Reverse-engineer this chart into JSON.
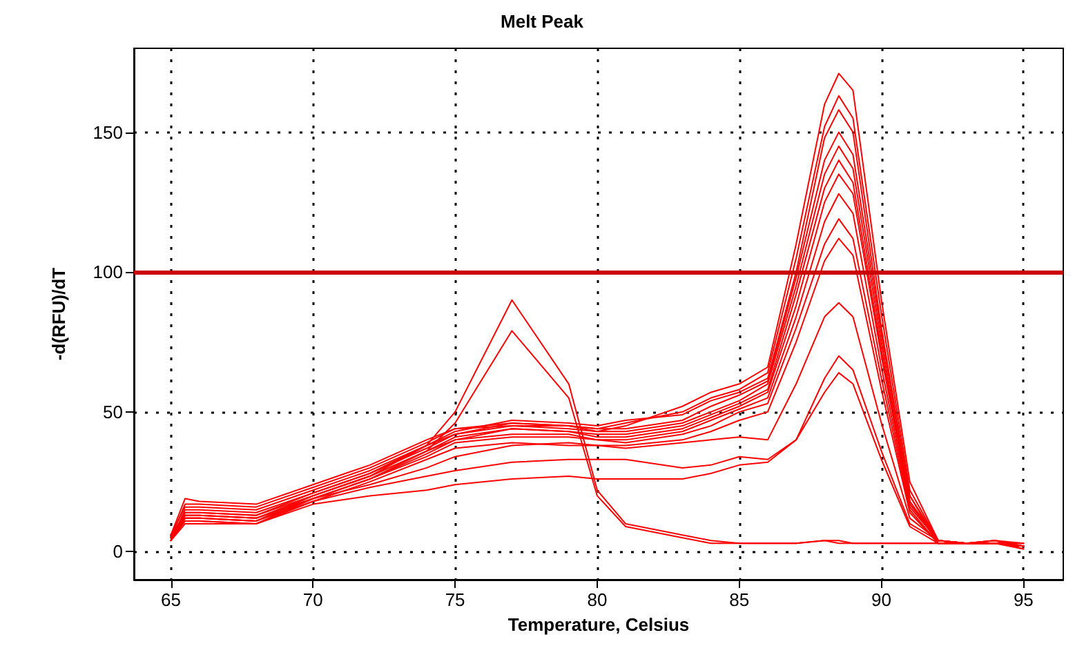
{
  "chart_data": {
    "type": "line",
    "title": "Melt Peak",
    "xlabel": "Temperature, Celsius",
    "ylabel": "-d(RFU)/dT",
    "x": [
      65,
      65.5,
      66,
      68,
      70,
      72,
      74,
      75,
      77,
      79,
      80,
      81,
      83,
      84,
      85,
      86,
      87,
      88,
      88.5,
      89,
      90,
      91,
      92,
      93,
      94,
      95
    ],
    "series": [
      {
        "color": "#ff0000",
        "values": [
          6,
          19,
          18,
          17,
          24,
          31,
          40,
          44,
          45,
          44,
          43,
          45,
          52,
          57,
          60,
          66,
          110,
          160,
          171,
          165,
          90,
          25,
          4,
          3,
          4,
          3
        ]
      },
      {
        "color": "#ff0000",
        "values": [
          5,
          17,
          17,
          16,
          23,
          30,
          39,
          44,
          46,
          45,
          44,
          46,
          50,
          55,
          58,
          64,
          105,
          152,
          163,
          155,
          85,
          22,
          4,
          3,
          3,
          2
        ]
      },
      {
        "color": "#ff0000",
        "values": [
          6,
          16,
          16,
          15,
          22,
          29,
          38,
          43,
          47,
          46,
          45,
          47,
          49,
          54,
          57,
          62,
          100,
          148,
          158,
          150,
          80,
          20,
          4,
          3,
          4,
          1
        ]
      },
      {
        "color": "#ff0000",
        "values": [
          4,
          15,
          15,
          14,
          21,
          28,
          38,
          42,
          46,
          45,
          44,
          44,
          47,
          52,
          56,
          61,
          98,
          140,
          150,
          142,
          78,
          20,
          3,
          3,
          3,
          2
        ]
      },
      {
        "color": "#ff0000",
        "values": [
          5,
          14,
          14,
          13,
          21,
          28,
          37,
          42,
          45,
          45,
          43,
          43,
          46,
          50,
          54,
          60,
          95,
          135,
          145,
          137,
          75,
          18,
          4,
          3,
          3,
          3
        ]
      },
      {
        "color": "#ff0000",
        "values": [
          5,
          13,
          13,
          12,
          20,
          27,
          36,
          41,
          44,
          43,
          42,
          42,
          45,
          49,
          53,
          58,
          92,
          130,
          140,
          132,
          72,
          18,
          3,
          3,
          4,
          2
        ]
      },
      {
        "color": "#ff0000",
        "values": [
          4,
          12,
          12,
          11,
          20,
          27,
          36,
          40,
          44,
          43,
          41,
          41,
          44,
          48,
          52,
          57,
          88,
          125,
          135,
          128,
          70,
          17,
          4,
          3,
          3,
          1
        ]
      },
      {
        "color": "#ff0000",
        "values": [
          5,
          12,
          12,
          11,
          19,
          26,
          35,
          40,
          42,
          42,
          40,
          40,
          43,
          47,
          51,
          55,
          84,
          118,
          128,
          121,
          66,
          16,
          4,
          3,
          3,
          2
        ]
      },
      {
        "color": "#ff0000",
        "values": [
          4,
          11,
          11,
          10,
          19,
          26,
          34,
          39,
          41,
          41,
          40,
          39,
          42,
          45,
          50,
          53,
          80,
          110,
          119,
          112,
          62,
          15,
          3,
          3,
          3,
          3
        ]
      },
      {
        "color": "#ff0000",
        "values": [
          5,
          11,
          11,
          10,
          18,
          25,
          33,
          37,
          39,
          38,
          38,
          38,
          40,
          43,
          47,
          50,
          75,
          104,
          112,
          106,
          58,
          14,
          3,
          3,
          4,
          2
        ]
      },
      {
        "color": "#ff0000",
        "values": [
          4,
          13,
          13,
          12,
          19,
          24,
          30,
          34,
          38,
          39,
          38,
          37,
          39,
          40,
          41,
          40,
          60,
          84,
          89,
          84,
          46,
          12,
          4,
          3,
          3,
          2
        ]
      },
      {
        "color": "#ff0000",
        "values": [
          5,
          12,
          12,
          11,
          18,
          23,
          27,
          29,
          32,
          33,
          33,
          33,
          30,
          31,
          34,
          33,
          40,
          62,
          70,
          65,
          36,
          10,
          4,
          3,
          3,
          2
        ]
      },
      {
        "color": "#ff0000",
        "values": [
          4,
          10,
          10,
          10,
          17,
          20,
          22,
          24,
          26,
          27,
          26,
          26,
          26,
          28,
          31,
          32,
          40,
          57,
          64,
          60,
          33,
          9,
          3,
          3,
          3,
          2
        ]
      },
      {
        "color": "#ff0000",
        "values": [
          5,
          14,
          14,
          13,
          20,
          27,
          38,
          50,
          90,
          60,
          22,
          10,
          6,
          4,
          3,
          3,
          3,
          4,
          4,
          3,
          3,
          3,
          3,
          3,
          3,
          2
        ]
      },
      {
        "color": "#ff0000",
        "values": [
          6,
          13,
          13,
          12,
          19,
          26,
          36,
          46,
          79,
          55,
          20,
          9,
          5,
          3,
          3,
          3,
          3,
          4,
          3,
          3,
          3,
          3,
          3,
          3,
          3,
          2
        ]
      }
    ],
    "xlim": [
      63.7,
      96.4
    ],
    "ylim": [
      -10,
      180
    ],
    "xticks": [
      65,
      70,
      75,
      80,
      85,
      90,
      95
    ],
    "yticks": [
      0,
      50,
      100,
      150
    ],
    "ref_lines": [
      {
        "axis": "y",
        "value": 100,
        "color": "#cc0000"
      }
    ],
    "grid": true,
    "marker": "none",
    "line_style": "solid"
  }
}
